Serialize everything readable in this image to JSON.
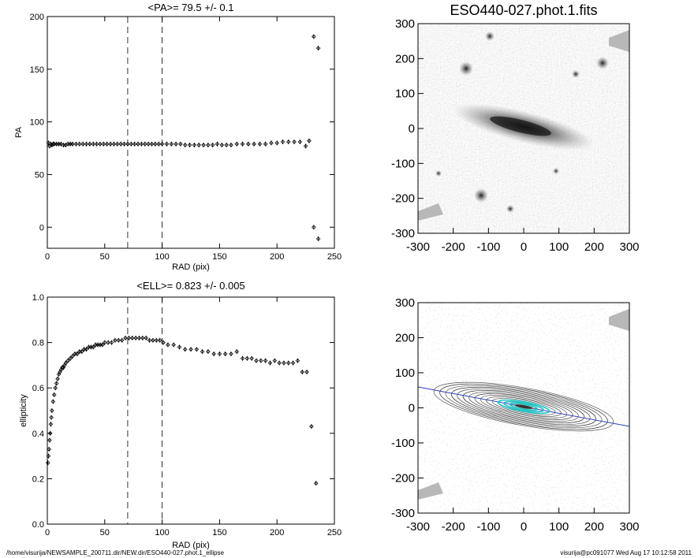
{
  "chart_data": [
    {
      "type": "scatter",
      "title": "<PA>=  79.5 +/-   0.1",
      "xlabel": "RAD (pix)",
      "ylabel": "PA",
      "xlim": [
        0,
        250
      ],
      "ylim": [
        -20,
        200
      ],
      "xticks": [
        "0",
        "50",
        "100",
        "150",
        "200",
        "250"
      ],
      "yticks": [
        "0",
        "50",
        "100",
        "150",
        "200"
      ],
      "vlines": [
        70,
        100
      ],
      "points": [
        [
          1,
          80
        ],
        [
          2,
          77
        ],
        [
          3,
          79
        ],
        [
          4,
          78
        ],
        [
          5,
          79
        ],
        [
          6,
          79
        ],
        [
          8,
          79
        ],
        [
          10,
          79
        ],
        [
          12,
          79
        ],
        [
          14,
          78
        ],
        [
          16,
          78
        ],
        [
          18,
          79
        ],
        [
          20,
          79
        ],
        [
          22,
          79
        ],
        [
          25,
          79
        ],
        [
          28,
          79
        ],
        [
          31,
          79
        ],
        [
          34,
          79
        ],
        [
          37,
          79
        ],
        [
          40,
          79
        ],
        [
          43,
          79
        ],
        [
          46,
          79
        ],
        [
          49,
          79
        ],
        [
          52,
          79
        ],
        [
          55,
          79
        ],
        [
          58,
          79
        ],
        [
          61,
          79
        ],
        [
          64,
          79
        ],
        [
          67,
          79
        ],
        [
          70,
          79
        ],
        [
          73,
          79
        ],
        [
          76,
          79
        ],
        [
          79,
          79
        ],
        [
          82,
          79
        ],
        [
          85,
          79
        ],
        [
          88,
          79
        ],
        [
          91,
          79
        ],
        [
          94,
          79
        ],
        [
          97,
          79
        ],
        [
          100,
          79
        ],
        [
          104,
          79
        ],
        [
          108,
          79
        ],
        [
          112,
          79
        ],
        [
          116,
          79
        ],
        [
          120,
          78
        ],
        [
          124,
          78
        ],
        [
          128,
          78
        ],
        [
          132,
          78
        ],
        [
          136,
          78
        ],
        [
          140,
          78
        ],
        [
          144,
          78
        ],
        [
          148,
          79
        ],
        [
          152,
          78
        ],
        [
          156,
          78
        ],
        [
          160,
          78
        ],
        [
          165,
          79
        ],
        [
          170,
          79
        ],
        [
          175,
          79
        ],
        [
          180,
          79
        ],
        [
          185,
          79
        ],
        [
          190,
          79
        ],
        [
          195,
          80
        ],
        [
          200,
          80
        ],
        [
          205,
          81
        ],
        [
          210,
          81
        ],
        [
          215,
          81
        ],
        [
          220,
          81
        ],
        [
          225,
          77
        ],
        [
          228,
          82
        ],
        [
          232,
          181
        ],
        [
          236,
          170
        ],
        [
          232,
          0
        ],
        [
          236,
          -11
        ]
      ]
    },
    {
      "type": "scatter",
      "title": "<ELL>= 0.823 +/-  0.005",
      "xlabel": "RAD (pix)",
      "ylabel": "ellipticity",
      "xlim": [
        0,
        250
      ],
      "ylim": [
        0.0,
        1.0
      ],
      "xticks": [
        "0",
        "50",
        "100",
        "150",
        "200",
        "250"
      ],
      "yticks": [
        "0.0",
        "0.2",
        "0.4",
        "0.6",
        "0.8",
        "1.0"
      ],
      "vlines": [
        70,
        100
      ],
      "points": [
        [
          0.5,
          0.27
        ],
        [
          1,
          0.3
        ],
        [
          1.5,
          0.33
        ],
        [
          2,
          0.37
        ],
        [
          2.5,
          0.4
        ],
        [
          3,
          0.44
        ],
        [
          3.5,
          0.47
        ],
        [
          4,
          0.5
        ],
        [
          5,
          0.54
        ],
        [
          6,
          0.57
        ],
        [
          7,
          0.6
        ],
        [
          8,
          0.62
        ],
        [
          9,
          0.64
        ],
        [
          10,
          0.66
        ],
        [
          11,
          0.67
        ],
        [
          12,
          0.68
        ],
        [
          13,
          0.69
        ],
        [
          14,
          0.69
        ],
        [
          15,
          0.7
        ],
        [
          16,
          0.71
        ],
        [
          18,
          0.72
        ],
        [
          20,
          0.73
        ],
        [
          22,
          0.74
        ],
        [
          24,
          0.75
        ],
        [
          26,
          0.75
        ],
        [
          28,
          0.76
        ],
        [
          30,
          0.76
        ],
        [
          32,
          0.77
        ],
        [
          34,
          0.77
        ],
        [
          36,
          0.78
        ],
        [
          38,
          0.78
        ],
        [
          40,
          0.78
        ],
        [
          42,
          0.79
        ],
        [
          44,
          0.79
        ],
        [
          46,
          0.79
        ],
        [
          48,
          0.79
        ],
        [
          50,
          0.8
        ],
        [
          53,
          0.8
        ],
        [
          56,
          0.8
        ],
        [
          59,
          0.81
        ],
        [
          62,
          0.81
        ],
        [
          65,
          0.81
        ],
        [
          68,
          0.82
        ],
        [
          71,
          0.82
        ],
        [
          74,
          0.82
        ],
        [
          77,
          0.82
        ],
        [
          80,
          0.82
        ],
        [
          83,
          0.82
        ],
        [
          86,
          0.82
        ],
        [
          89,
          0.81
        ],
        [
          92,
          0.81
        ],
        [
          95,
          0.81
        ],
        [
          98,
          0.81
        ],
        [
          101,
          0.8
        ],
        [
          105,
          0.79
        ],
        [
          110,
          0.79
        ],
        [
          115,
          0.78
        ],
        [
          120,
          0.77
        ],
        [
          125,
          0.77
        ],
        [
          130,
          0.77
        ],
        [
          135,
          0.76
        ],
        [
          140,
          0.76
        ],
        [
          145,
          0.75
        ],
        [
          150,
          0.75
        ],
        [
          155,
          0.75
        ],
        [
          160,
          0.75
        ],
        [
          165,
          0.76
        ],
        [
          170,
          0.73
        ],
        [
          174,
          0.73
        ],
        [
          178,
          0.73
        ],
        [
          182,
          0.72
        ],
        [
          186,
          0.72
        ],
        [
          190,
          0.72
        ],
        [
          194,
          0.71
        ],
        [
          198,
          0.72
        ],
        [
          202,
          0.71
        ],
        [
          206,
          0.71
        ],
        [
          210,
          0.71
        ],
        [
          214,
          0.71
        ],
        [
          218,
          0.72
        ],
        [
          222,
          0.67
        ],
        [
          226,
          0.67
        ],
        [
          230,
          0.43
        ],
        [
          234,
          0.18
        ]
      ]
    },
    {
      "type": "heatmap",
      "title": "ESO440-027.phot.1.fits",
      "xlim": [
        -300,
        300
      ],
      "ylim": [
        -300,
        300
      ],
      "xticks": [
        "-300",
        "-200",
        "-100",
        "0",
        "100",
        "200",
        "300"
      ],
      "yticks": [
        "-300",
        "-200",
        "-100",
        "0",
        "100",
        "200",
        "300"
      ]
    },
    {
      "type": "heatmap",
      "title": "",
      "xlim": [
        -300,
        300
      ],
      "ylim": [
        -300,
        300
      ],
      "xticks": [
        "-300",
        "-200",
        "-100",
        "0",
        "100",
        "200",
        "300"
      ],
      "yticks": [
        "-300",
        "-200",
        "-100",
        "0",
        "100",
        "200",
        "300"
      ]
    }
  ],
  "footer": {
    "left": "/home/visurija/NEWSAMPLE_200711.dir/NEW.dir/ESO440-027.phot.1_ellipse",
    "right": "visurija@pc091077  Wed Aug 17 10:12:58 2011"
  }
}
